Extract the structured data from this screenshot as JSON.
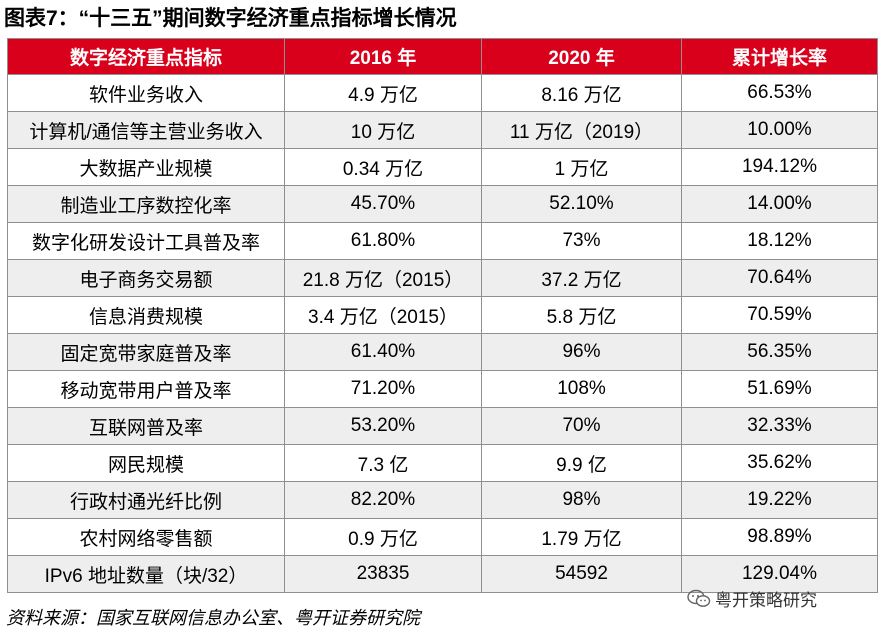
{
  "title": "图表7：“十三五”期间数字经济重点指标增长情况",
  "table": {
    "headers": [
      "数字经济重点指标",
      "2016 年",
      "2020 年",
      "累计增长率"
    ],
    "rows": [
      [
        "软件业务收入",
        "4.9 万亿",
        "8.16 万亿",
        "66.53%"
      ],
      [
        "计算机/通信等主营业务收入",
        "10 万亿",
        "11 万亿（2019）",
        "10.00%"
      ],
      [
        "大数据产业规模",
        "0.34 万亿",
        "1 万亿",
        "194.12%"
      ],
      [
        "制造业工序数控化率",
        "45.70%",
        "52.10%",
        "14.00%"
      ],
      [
        "数字化研发设计工具普及率",
        "61.80%",
        "73%",
        "18.12%"
      ],
      [
        "电子商务交易额",
        "21.8 万亿（2015）",
        "37.2 万亿",
        "70.64%"
      ],
      [
        "信息消费规模",
        "3.4 万亿（2015）",
        "5.8 万亿",
        "70.59%"
      ],
      [
        "固定宽带家庭普及率",
        "61.40%",
        "96%",
        "56.35%"
      ],
      [
        "移动宽带用户普及率",
        "71.20%",
        "108%",
        "51.69%"
      ],
      [
        "互联网普及率",
        "53.20%",
        "70%",
        "32.33%"
      ],
      [
        "网民规模",
        "7.3 亿",
        "9.9 亿",
        "35.62%"
      ],
      [
        "行政村通光纤比例",
        "82.20%",
        "98%",
        "19.22%"
      ],
      [
        "农村网络零售额",
        "0.9 万亿",
        "1.79 万亿",
        "98.89%"
      ],
      [
        "IPv6 地址数量（块/32）",
        "23835",
        "54592",
        "129.04%"
      ]
    ]
  },
  "source": "资料来源：国家互联网信息办公室、粤开证券研究院",
  "watermark": "粤开策略研究",
  "colors": {
    "header_bg": "#d9001b",
    "header_text": "#ffffff",
    "alt_row_bg": "#eeeeee"
  }
}
